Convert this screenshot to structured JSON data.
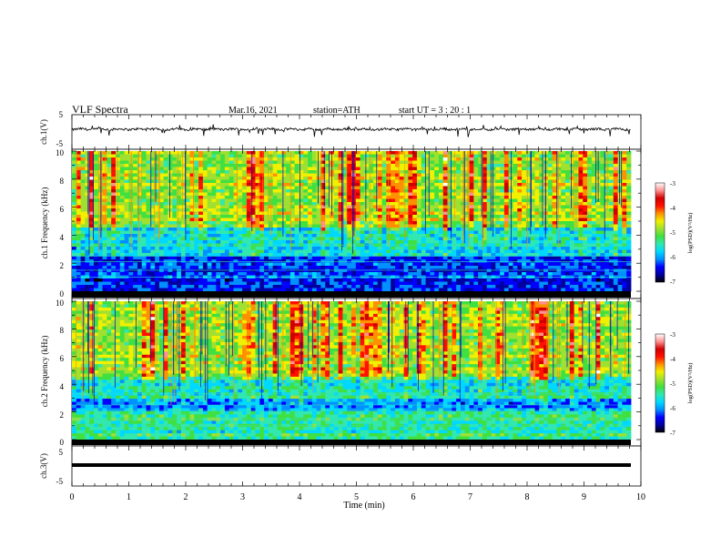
{
  "header": {
    "title": "VLF  Spectra",
    "date": "Mar.16, 2021",
    "station": "station=ATH",
    "start": "start  UT  =    3  : 20 : 1"
  },
  "colorbar": {
    "label": "log(PSD)(V²/Hz)",
    "ticks": [
      "-3",
      "-4",
      "-5",
      "-6",
      "-7"
    ],
    "colors": [
      "#000000",
      "#0000a0",
      "#0000ff",
      "#0090ff",
      "#00d8ff",
      "#30e8b0",
      "#40e040",
      "#a0e030",
      "#f0f000",
      "#ff9000",
      "#ff1000",
      "#d00000",
      "#ff9090",
      "#ffffff"
    ]
  },
  "chart_data": [
    {
      "type": "line",
      "panel": "ch1-waveform",
      "ylabel": "ch.1(V)",
      "ylim": [
        -5,
        5
      ],
      "yticks": [
        "5",
        "-5"
      ],
      "xlim": [
        0,
        10
      ],
      "series": [
        {
          "values": "continuous noisy waveform around 0 V, amplitude about ±1 V, with spikes to about -2.5 V"
        }
      ]
    },
    {
      "type": "heatmap",
      "panel": "ch1-spectrogram",
      "ylabel": "ch.1  Frequency  (kHz)",
      "ylim": [
        0,
        10
      ],
      "yticks": [
        "0",
        "2",
        "4",
        "6",
        "8",
        "10"
      ],
      "xlim": [
        0,
        9.8
      ],
      "value_range": [
        -7,
        -3
      ],
      "bands_khz": [
        {
          "from": 0,
          "to": 2.4,
          "level": -6.3
        },
        {
          "from": 2.4,
          "to": 4.5,
          "level": -5.8
        },
        {
          "from": 4.5,
          "to": 10,
          "level": -5.0
        }
      ]
    },
    {
      "type": "heatmap",
      "panel": "ch2-spectrogram",
      "ylabel": "ch.2  Frequency  (kHz)",
      "ylim": [
        0,
        10
      ],
      "yticks": [
        "0",
        "2",
        "4",
        "6",
        "8",
        "10"
      ],
      "xlim": [
        0,
        9.8
      ],
      "value_range": [
        -7,
        -3
      ],
      "bands_khz": [
        {
          "from": 0,
          "to": 2.0,
          "level": -5.4
        },
        {
          "from": 2.0,
          "to": 3.0,
          "level": -6.0
        },
        {
          "from": 3.0,
          "to": 4.5,
          "level": -5.6
        },
        {
          "from": 4.5,
          "to": 10,
          "level": -5.0
        }
      ]
    },
    {
      "type": "line",
      "panel": "ch3-waveform",
      "ylabel": "ch.3(V)",
      "ylim": [
        -5,
        5
      ],
      "yticks": [
        "5",
        "-5"
      ],
      "xlim": [
        0,
        10
      ],
      "series": [
        {
          "values": "flat thick trace at about -1.4 V"
        }
      ]
    }
  ],
  "xaxis": {
    "label": "Time  (min)",
    "ticks": [
      "0",
      "1",
      "2",
      "3",
      "4",
      "5",
      "6",
      "7",
      "8",
      "9",
      "10"
    ]
  }
}
